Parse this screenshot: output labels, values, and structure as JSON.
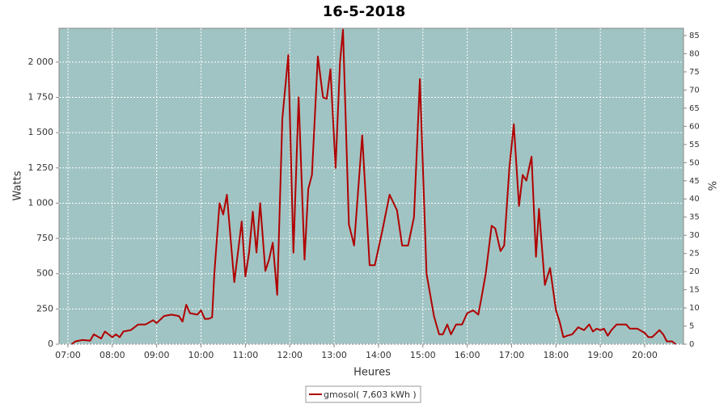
{
  "chart_data": {
    "type": "line",
    "title": "16-5-2018",
    "xlabel": "Heures",
    "ylabel": "Watts",
    "y2label": "%",
    "xlim": [
      6.8,
      20.875
    ],
    "xticks": [
      {
        "value": 7,
        "label": "07:00"
      },
      {
        "value": 8,
        "label": "08:00"
      },
      {
        "value": 9,
        "label": "09:00"
      },
      {
        "value": 10,
        "label": "10:00"
      },
      {
        "value": 11,
        "label": "11:00"
      },
      {
        "value": 12,
        "label": "12:00"
      },
      {
        "value": 13,
        "label": "13:00"
      },
      {
        "value": 14,
        "label": "14:00"
      },
      {
        "value": 15,
        "label": "15:00"
      },
      {
        "value": 16,
        "label": "16:00"
      },
      {
        "value": 17,
        "label": "17:00"
      },
      {
        "value": 18,
        "label": "18:00"
      },
      {
        "value": 19,
        "label": "19:00"
      },
      {
        "value": 20,
        "label": "20:00"
      }
    ],
    "ylim": [
      0,
      2240
    ],
    "yticks": [
      0,
      250,
      500,
      750,
      {
        "value": 1000,
        "label": "1 000"
      },
      {
        "value": 1250,
        "label": "1 250"
      },
      {
        "value": 1500,
        "label": "1 500"
      },
      {
        "value": 1750,
        "label": "1 750"
      },
      {
        "value": 2000,
        "label": "2 000"
      }
    ],
    "y2lim": [
      0,
      87
    ],
    "y2ticks": [
      0,
      5,
      10,
      15,
      20,
      25,
      30,
      35,
      40,
      45,
      50,
      55,
      60,
      65,
      70,
      75,
      80,
      85
    ],
    "grid": true,
    "legend": "bottom",
    "series": [
      {
        "name": "gmosol( 7,603 kWh )",
        "color": "#b00000",
        "x": [
          7.083,
          7.167,
          7.333,
          7.5,
          7.583,
          7.75,
          7.833,
          8.0,
          8.083,
          8.167,
          8.25,
          8.417,
          8.583,
          8.75,
          8.917,
          9.0,
          9.167,
          9.333,
          9.5,
          9.583,
          9.667,
          9.75,
          9.917,
          10.0,
          10.083,
          10.167,
          10.25,
          10.3,
          10.417,
          10.5,
          10.583,
          10.75,
          10.917,
          11.0,
          11.083,
          11.167,
          11.25,
          11.333,
          11.45,
          11.533,
          11.617,
          11.717,
          11.833,
          11.967,
          12.083,
          12.2,
          12.333,
          12.417,
          12.5,
          12.633,
          12.75,
          12.833,
          12.917,
          13.033,
          13.133,
          13.2,
          13.333,
          13.45,
          13.633,
          13.8,
          13.917,
          14.083,
          14.25,
          14.417,
          14.533,
          14.667,
          14.8,
          14.933,
          15.083,
          15.25,
          15.367,
          15.45,
          15.55,
          15.633,
          15.75,
          15.883,
          16.0,
          16.133,
          16.25,
          16.333,
          16.417,
          16.55,
          16.633,
          16.75,
          16.833,
          16.95,
          17.05,
          17.167,
          17.25,
          17.333,
          17.45,
          17.55,
          17.617,
          17.75,
          17.867,
          18.0,
          18.083,
          18.167,
          18.25,
          18.367,
          18.5,
          18.633,
          18.75,
          18.833,
          18.917,
          19.0,
          19.083,
          19.167,
          19.25,
          19.367,
          19.583,
          19.667,
          19.833,
          20.0,
          20.083,
          20.167,
          20.333,
          20.417,
          20.5,
          20.617,
          20.7
        ],
        "values": [
          0,
          20,
          30,
          25,
          70,
          40,
          90,
          50,
          70,
          50,
          90,
          100,
          140,
          140,
          170,
          150,
          200,
          210,
          200,
          160,
          280,
          220,
          210,
          240,
          180,
          180,
          190,
          500,
          1000,
          920,
          1060,
          440,
          870,
          480,
          650,
          940,
          650,
          1000,
          520,
          600,
          720,
          350,
          1600,
          2050,
          650,
          1750,
          600,
          1100,
          1200,
          2040,
          1750,
          1740,
          1950,
          1250,
          2000,
          2230,
          850,
          700,
          1480,
          560,
          560,
          800,
          1060,
          950,
          700,
          700,
          900,
          1880,
          500,
          200,
          70,
          70,
          140,
          70,
          140,
          140,
          220,
          240,
          210,
          350,
          500,
          840,
          820,
          660,
          700,
          1250,
          1560,
          980,
          1200,
          1160,
          1330,
          620,
          960,
          420,
          540,
          240,
          160,
          50,
          60,
          70,
          120,
          100,
          140,
          90,
          110,
          100,
          110,
          60,
          100,
          140,
          140,
          110,
          110,
          80,
          50,
          50,
          100,
          70,
          20,
          20,
          0
        ]
      }
    ]
  }
}
